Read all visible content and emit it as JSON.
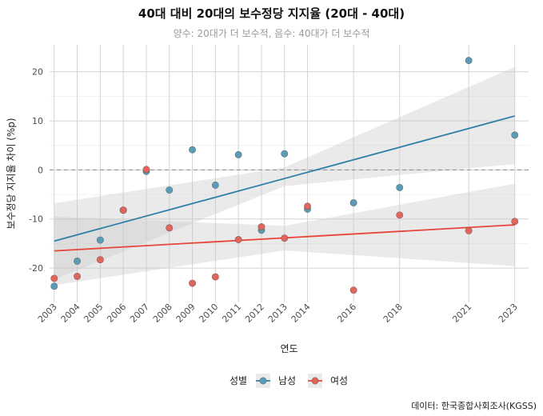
{
  "chart_data": {
    "type": "scatter",
    "title": "40대 대비 20대의 보수정당 지지율 (20대 - 40대)",
    "subtitle": "양수: 20대가 더 보수적, 음수: 40대가 더 보수적",
    "xlabel": "연도",
    "ylabel": "보수정당 지지율 차이 (%p)",
    "caption": "데이터: 한국종합사회조사(KGSS)",
    "xlim": [
      2002.8,
      2023.6
    ],
    "ylim": [
      -27.0,
      25.5
    ],
    "x_ticks": [
      2003,
      2004,
      2005,
      2006,
      2007,
      2008,
      2009,
      2010,
      2011,
      2012,
      2013,
      2014,
      2016,
      2018,
      2021,
      2023
    ],
    "x_tick_labels": [
      "2003",
      "2004",
      "2005",
      "2006",
      "2007",
      "2008",
      "2009",
      "2010",
      "2011",
      "2012",
      "2013",
      "2014",
      "2016",
      "2018",
      "2021",
      "2023"
    ],
    "y_ticks": [
      -20,
      -10,
      0,
      10,
      20
    ],
    "y_tick_labels": [
      "-20",
      "-10",
      "0",
      "10",
      "20"
    ],
    "reference_line": 0,
    "legend": {
      "title": "성별",
      "position": "bottom"
    },
    "series": [
      {
        "name": "남성",
        "color": "#2e7fa6",
        "point_color": "#5b9bb5",
        "x": [
          2003,
          2004,
          2005,
          2006,
          2007,
          2008,
          2009,
          2010,
          2011,
          2012,
          2013,
          2014,
          2016,
          2018,
          2021,
          2023
        ],
        "y": [
          -23.7,
          -18.6,
          -14.3,
          -8.2,
          -0.3,
          -4.1,
          4.1,
          -3.1,
          3.1,
          -12.3,
          3.3,
          -8.0,
          -6.7,
          -3.6,
          22.3,
          7.1
        ],
        "trend": {
          "x": [
            2003,
            2023
          ],
          "y": [
            -14.5,
            11.0
          ]
        },
        "band": {
          "x": [
            2003,
            2013,
            2023
          ],
          "upper": [
            -6.8,
            0.5,
            21.0
          ],
          "lower": [
            -22.3,
            -3.3,
            1.2
          ]
        }
      },
      {
        "name": "여성",
        "color": "#e8463a",
        "point_color": "#e0655d",
        "x": [
          2003,
          2004,
          2005,
          2006,
          2007,
          2008,
          2009,
          2010,
          2011,
          2012,
          2013,
          2014,
          2016,
          2018,
          2021,
          2023
        ],
        "y": [
          -22.1,
          -21.7,
          -18.3,
          -8.2,
          0.1,
          -11.8,
          -23.1,
          -21.8,
          -14.2,
          -11.6,
          -13.9,
          -7.4,
          -24.5,
          -9.2,
          -12.4,
          -10.5
        ],
        "trend": {
          "x": [
            2003,
            2023
          ],
          "y": [
            -16.5,
            -11.2
          ]
        },
        "band": {
          "x": [
            2003,
            2013,
            2023
          ],
          "upper": [
            -9.5,
            -11.4,
            -2.8
          ],
          "lower": [
            -23.5,
            -16.4,
            -19.6
          ]
        }
      }
    ]
  }
}
